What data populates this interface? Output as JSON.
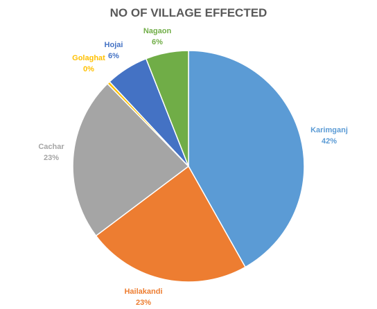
{
  "chart_data": {
    "type": "pie",
    "title": "NO OF VILLAGE EFFECTED",
    "slices": [
      {
        "name": "Karimganj",
        "value": 42,
        "label": "42%",
        "color": "#5b9bd5"
      },
      {
        "name": "Hailakandi",
        "value": 23,
        "label": "23%",
        "color": "#ed7d31"
      },
      {
        "name": "Cachar",
        "value": 23,
        "label": "23%",
        "color": "#a5a5a5"
      },
      {
        "name": "Golaghat",
        "value": 0.4,
        "label": "0%",
        "color": "#ffc000"
      },
      {
        "name": "Hojai",
        "value": 6,
        "label": "6%",
        "color": "#4472c4"
      },
      {
        "name": "Nagaon",
        "value": 6,
        "label": "6%",
        "color": "#70ad47"
      }
    ],
    "legend": "none"
  }
}
